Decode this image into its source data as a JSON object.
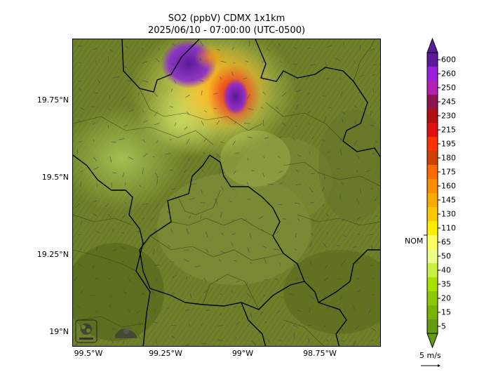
{
  "header": {
    "title_line1": "SO2 (ppbV) CDMX 1x1km",
    "title_line2": "2025/06/10 - 07:00:00 (UTC-0500)"
  },
  "axes": {
    "latitude_labels": [
      "19.75°N",
      "19.5°N",
      "19.25°N",
      "19°N"
    ],
    "longitude_labels": [
      "99.5°W",
      "99.25°W",
      "99°W",
      "98.75°W"
    ]
  },
  "colorbar": {
    "levels": [
      "600",
      "260",
      "250",
      "245",
      "230",
      "215",
      "195",
      "180",
      "175",
      "160",
      "145",
      "130",
      "110",
      "65",
      "50",
      "40",
      "35",
      "20",
      "15",
      "5"
    ],
    "colors": [
      "#5a1a9a",
      "#9b1fdc",
      "#b41fb4",
      "#8c1450",
      "#b01010",
      "#e01010",
      "#ff3300",
      "#d04000",
      "#ff6a00",
      "#ff8c00",
      "#ffaa00",
      "#ffc800",
      "#ffee00",
      "#ffff60",
      "#eeff88",
      "#c8f040",
      "#a8e000",
      "#8cc800",
      "#78b400",
      "#649c10"
    ],
    "nom_label": "NOM",
    "nom_value": 110
  },
  "wind": {
    "label": "5 m/s"
  },
  "logos": {
    "left": "icon-sedema-logo",
    "right": "icon-cdmx-logo"
  },
  "colors": {
    "terrain_dark": "#5b6d22",
    "terrain_mid": "#7d8f35",
    "terrain_light": "#a4c250",
    "plume_core": "#5a1a9a",
    "plume_edge": "#ffff60"
  }
}
